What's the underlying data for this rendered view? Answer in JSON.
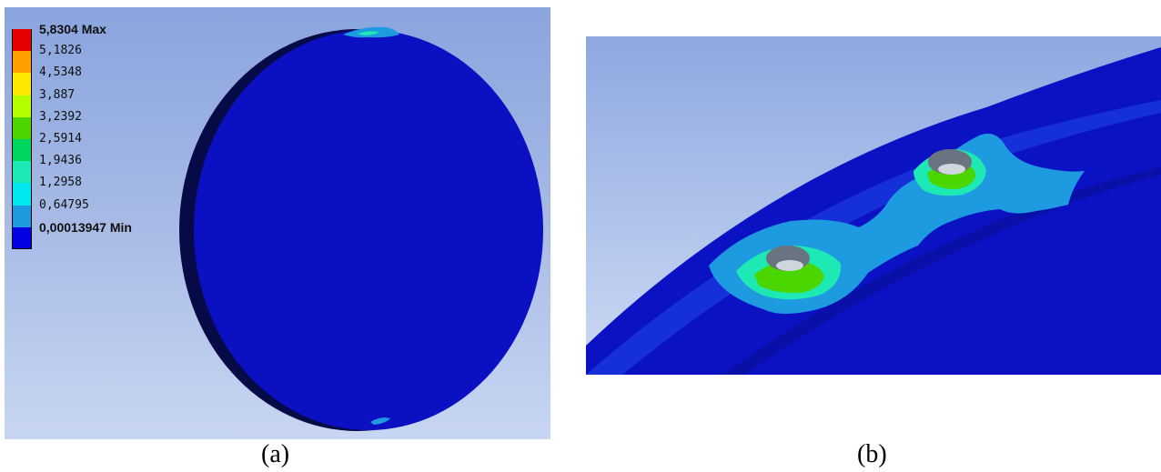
{
  "panel_a": {
    "legend": {
      "labels": [
        "5,8304 Max",
        "5,1826",
        "4,5348",
        "3,887",
        "3,2392",
        "2,5914",
        "1,9436",
        "1,2958",
        "0,64795",
        "0,00013947 Min"
      ],
      "colors": [
        "#e60000",
        "#ff9f00",
        "#ffe800",
        "#b4ff00",
        "#4cd600",
        "#00d65e",
        "#1ee8b4",
        "#00e8ef",
        "#1e9ae0",
        "#0000e0"
      ]
    },
    "caption": "(a)"
  },
  "panel_b": {
    "caption": "(b)"
  }
}
